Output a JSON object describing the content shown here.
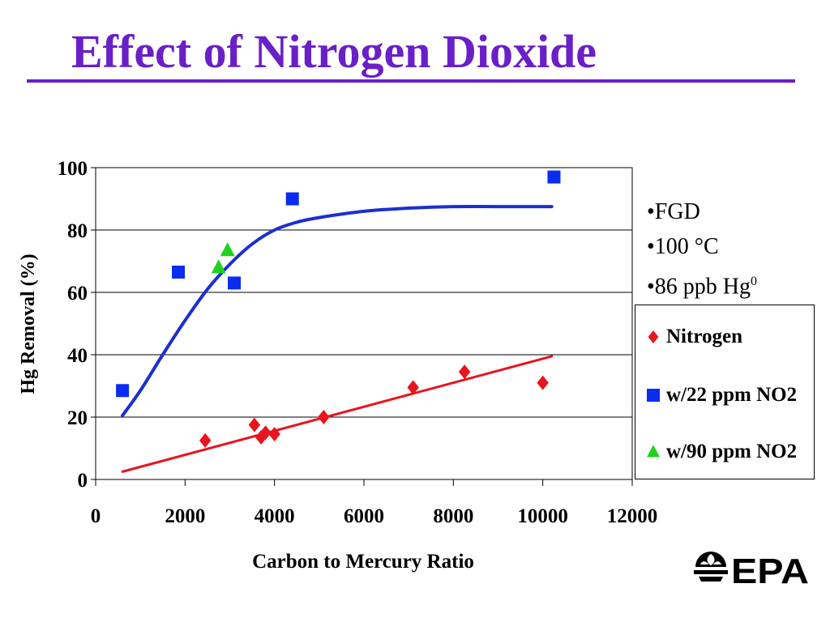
{
  "slide": {
    "title": "Effect of Nitrogen Dioxide",
    "notes": [
      {
        "text": "•FGD"
      },
      {
        "text": "•100 °C"
      },
      {
        "text": "•86 ppb Hg",
        "sup": "0"
      }
    ],
    "logo_text": "EPA"
  },
  "colors": {
    "title": "#6a1fc8",
    "nitrogen": "#e8141e",
    "no2_22": "#0a2cf0",
    "no2_90": "#1ed21e",
    "curve": "#1a2fd0",
    "trend": "#e8141e"
  },
  "chart_data": {
    "type": "scatter",
    "xlabel": "Carbon to Mercury Ratio",
    "ylabel": "Hg Removal (%)",
    "xlim": [
      0,
      12000
    ],
    "ylim": [
      0,
      100
    ],
    "xticks": [
      0,
      2000,
      4000,
      6000,
      8000,
      10000,
      12000
    ],
    "yticks": [
      0,
      20,
      40,
      60,
      80,
      100
    ],
    "grid": "horizontal",
    "legend_position": "right",
    "series": [
      {
        "name": "Nitrogen",
        "marker": "diamond",
        "color": "#e8141e",
        "x": [
          2450,
          3550,
          3700,
          3800,
          4000,
          5100,
          7100,
          8250,
          10000
        ],
        "y": [
          12.5,
          17.5,
          13.5,
          15,
          14.5,
          20,
          29.5,
          34.5,
          31
        ]
      },
      {
        "name": "w/22 ppm NO2",
        "marker": "square",
        "color": "#0a2cf0",
        "x": [
          600,
          1850,
          3100,
          4400,
          10250
        ],
        "y": [
          28.5,
          66.5,
          63,
          90,
          97
        ]
      },
      {
        "name": "w/90 ppm NO2",
        "marker": "triangle",
        "color": "#1ed21e",
        "x": [
          2750,
          2950
        ],
        "y": [
          68,
          73.5
        ]
      }
    ],
    "fits": [
      {
        "kind": "curve",
        "color": "#1a2fd0",
        "x": [
          600,
          1000,
          1500,
          2000,
          2500,
          3000,
          3500,
          4000,
          4500,
          5000,
          6000,
          7000,
          8000,
          9000,
          10200
        ],
        "y": [
          20.5,
          28.5,
          40,
          51,
          61,
          69,
          75.5,
          80,
          82.5,
          84,
          86,
          87,
          87.5,
          87.5,
          87.5
        ]
      },
      {
        "kind": "line",
        "color": "#e8141e",
        "x": [
          600,
          10200
        ],
        "y": [
          2.5,
          39.5
        ]
      }
    ]
  }
}
